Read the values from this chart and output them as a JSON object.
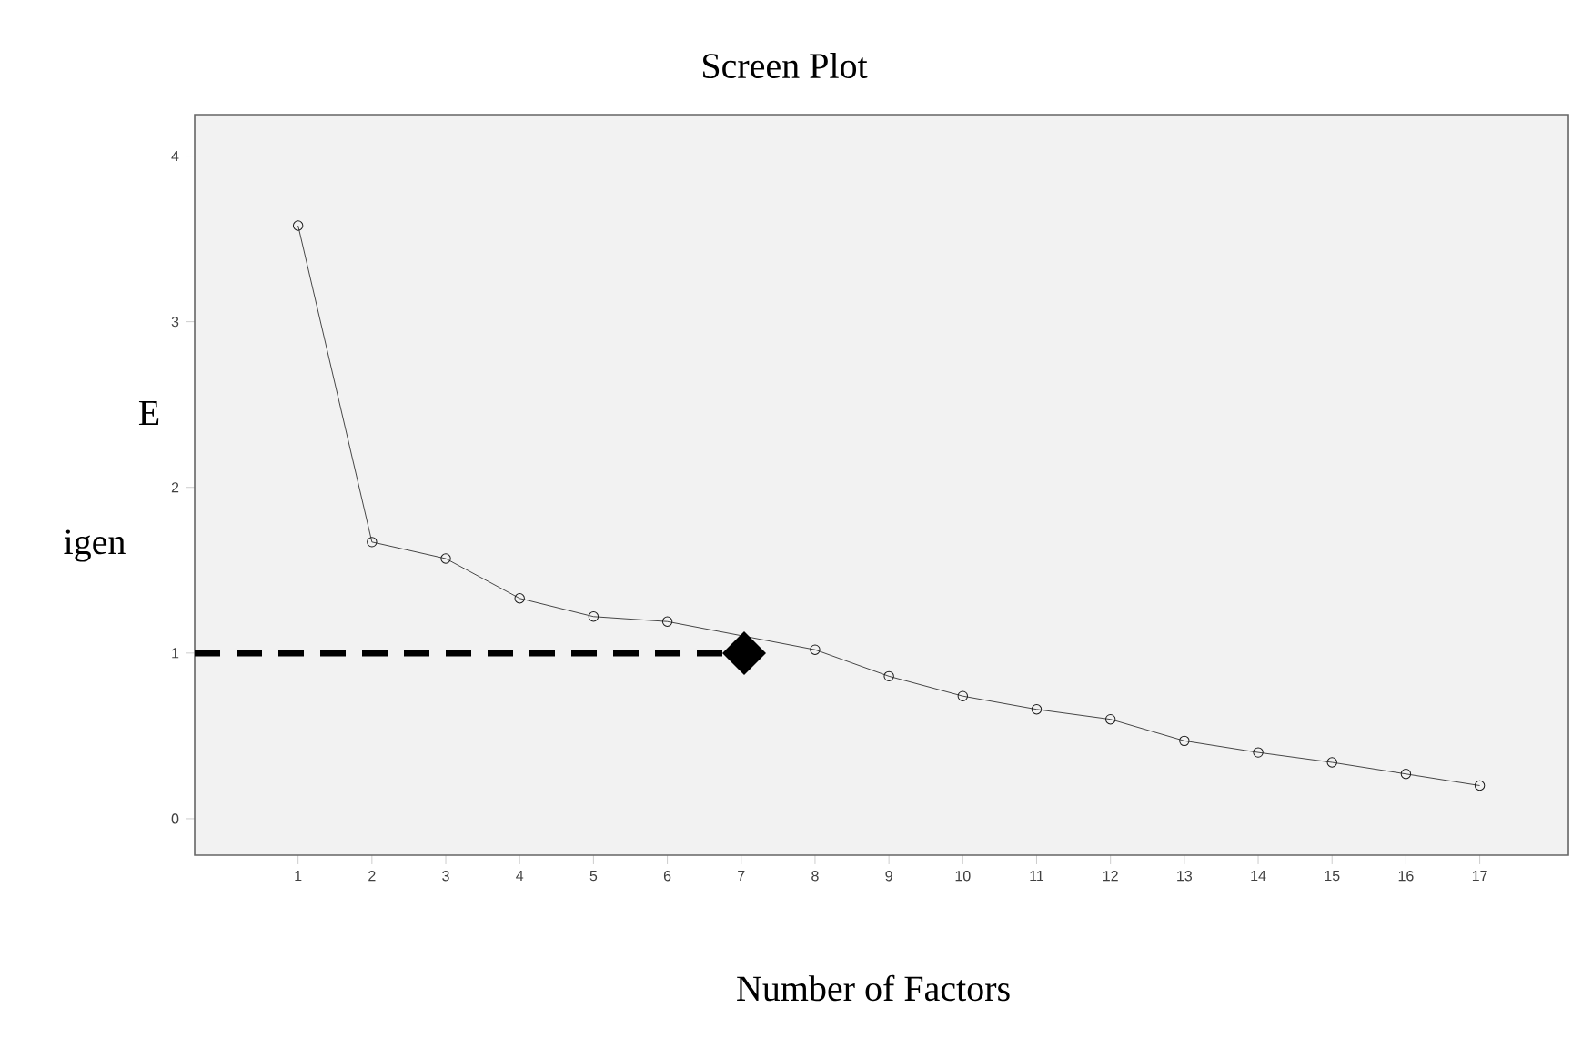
{
  "chart_data": {
    "type": "line",
    "title": "Screen Plot",
    "xlabel": "Number of Factors",
    "annotations": [
      "E",
      "igen"
    ],
    "xlim": [
      -0.4,
      18.2
    ],
    "ylim": [
      -0.22,
      4.25
    ],
    "xticks": [
      1,
      2,
      3,
      4,
      5,
      6,
      7,
      8,
      9,
      10,
      11,
      12,
      13,
      14,
      15,
      16,
      17
    ],
    "yticks": [
      0,
      1,
      2,
      3,
      4
    ],
    "grid": false,
    "series": [
      {
        "color": "#1a1a1a",
        "marker": "circle",
        "line_style": "solid",
        "x": [
          1,
          2,
          3,
          4,
          5,
          6,
          7,
          8,
          9,
          10,
          11,
          12,
          13,
          14,
          15,
          16,
          17
        ],
        "values": [
          3.58,
          1.67,
          1.57,
          1.33,
          1.22,
          1.19,
          null,
          1.02,
          0.86,
          0.74,
          0.66,
          0.6,
          0.47,
          0.4,
          0.34,
          0.27,
          0.2
        ]
      }
    ]
  }
}
